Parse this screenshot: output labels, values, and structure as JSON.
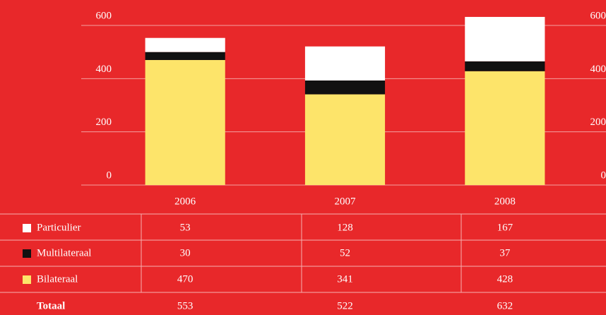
{
  "chart_data": {
    "type": "bar",
    "stacked": true,
    "categories": [
      "2006",
      "2007",
      "2008"
    ],
    "series": [
      {
        "name": "Bilateraal",
        "color": "#fde46a",
        "values": [
          470,
          341,
          428
        ]
      },
      {
        "name": "Multilateraal",
        "color": "#111111",
        "values": [
          30,
          52,
          37
        ]
      },
      {
        "name": "Particulier",
        "color": "#ffffff",
        "values": [
          53,
          128,
          167
        ]
      }
    ],
    "total_label": "Totaal",
    "totals": [
      553,
      522,
      632
    ],
    "ylim": [
      0,
      600
    ],
    "yticks": [
      0,
      200,
      400,
      600
    ],
    "grid": true
  }
}
